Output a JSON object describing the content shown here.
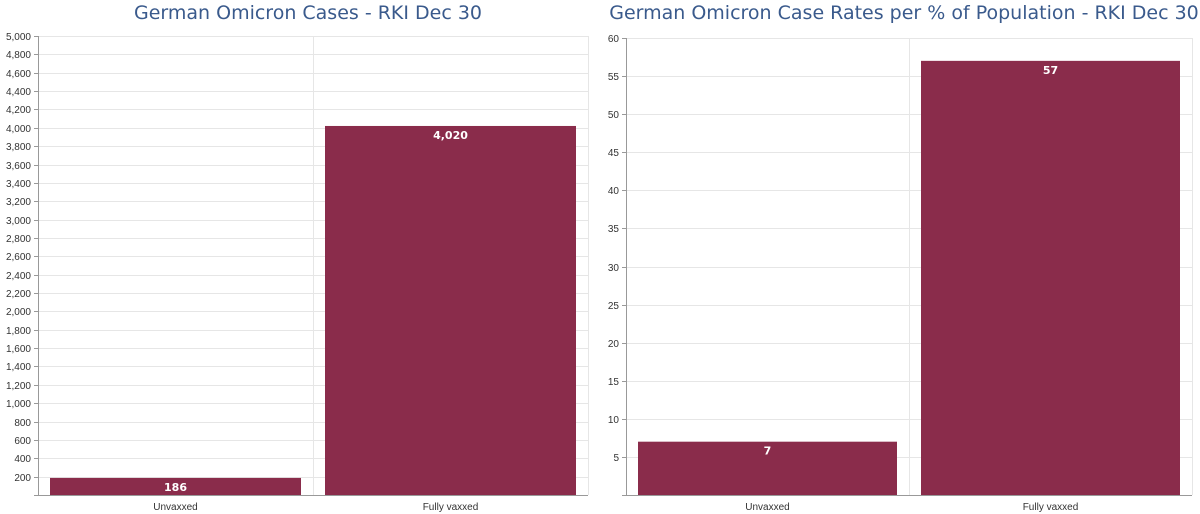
{
  "chart_data": [
    {
      "type": "bar",
      "title": "German Omicron Cases - RKI Dec 30",
      "categories": [
        "Unvaxxed",
        "Fully vaxxed"
      ],
      "values": [
        186,
        4020
      ],
      "data_labels": [
        "186",
        "4,020"
      ],
      "ylim": [
        0,
        5000
      ],
      "yticks": [
        0,
        200,
        400,
        600,
        800,
        1000,
        1200,
        1400,
        1600,
        1800,
        2000,
        2200,
        2400,
        2600,
        2800,
        3000,
        3200,
        3400,
        3600,
        3800,
        4000,
        4200,
        4400,
        4600,
        4800,
        5000
      ],
      "ytick_labels": [
        "",
        "200",
        "400",
        "600",
        "800",
        "1,000",
        "1,200",
        "1,400",
        "1,600",
        "1,800",
        "2,000",
        "2,200",
        "2,400",
        "2,600",
        "2,800",
        "3,000",
        "3,200",
        "3,400",
        "3,600",
        "3,800",
        "4,000",
        "4,200",
        "4,400",
        "4,600",
        "4,800",
        "5,000"
      ],
      "bar_color": "#8a2c4b",
      "grid": true,
      "legend": "none"
    },
    {
      "type": "bar",
      "title": "German Omicron Case Rates per % of Population - RKI Dec 30",
      "categories": [
        "Unvaxxed",
        "Fully vaxxed"
      ],
      "values": [
        7,
        57
      ],
      "data_labels": [
        "7",
        "57"
      ],
      "ylim": [
        0,
        60
      ],
      "yticks": [
        0,
        5,
        10,
        15,
        20,
        25,
        30,
        35,
        40,
        45,
        50,
        55,
        60
      ],
      "ytick_labels": [
        "",
        "5",
        "10",
        "15",
        "20",
        "25",
        "30",
        "35",
        "40",
        "45",
        "50",
        "55",
        "60"
      ],
      "bar_color": "#8a2c4b",
      "grid": true,
      "legend": "none"
    }
  ]
}
